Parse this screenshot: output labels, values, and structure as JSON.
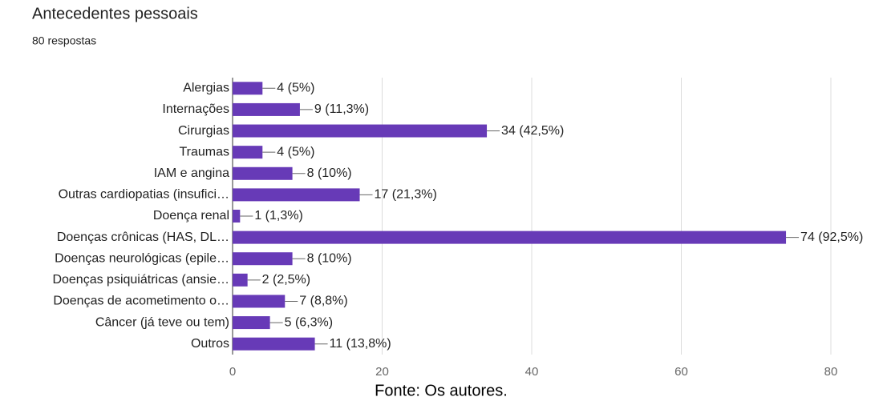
{
  "chart_data": {
    "type": "bar",
    "horizontal": true,
    "title": "Antecedentes pessoais",
    "subtitle": "80 respostas",
    "caption": "Fonte: Os autores.",
    "categories": [
      "Alergias",
      "Internações",
      "Cirurgias",
      "Traumas",
      "IAM e angina",
      "Outras cardiopatias (insufici…",
      "Doença renal",
      "Doenças crônicas (HAS, DL…",
      "Doenças neurológicas (epile…",
      "Doenças psiquiátricas (ansie…",
      "Doenças de acometimento o…",
      "Câncer (já teve ou tem)",
      "Outros"
    ],
    "values": [
      4,
      9,
      34,
      4,
      8,
      17,
      1,
      74,
      8,
      2,
      7,
      5,
      11
    ],
    "value_labels": [
      "4 (5%)",
      "9 (11,3%)",
      "34 (42,5%)",
      "4 (5%)",
      "8 (10%)",
      "17 (21,3%)",
      "1 (1,3%)",
      "74 (92,5%)",
      "8 (10%)",
      "2 (2,5%)",
      "7 (8,8%)",
      "5 (6,3%)",
      "11 (13,8%)"
    ],
    "color": "#673ab7",
    "xlim": [
      0,
      80
    ],
    "xticks": [
      0,
      20,
      40,
      60,
      80
    ],
    "grid": true
  }
}
